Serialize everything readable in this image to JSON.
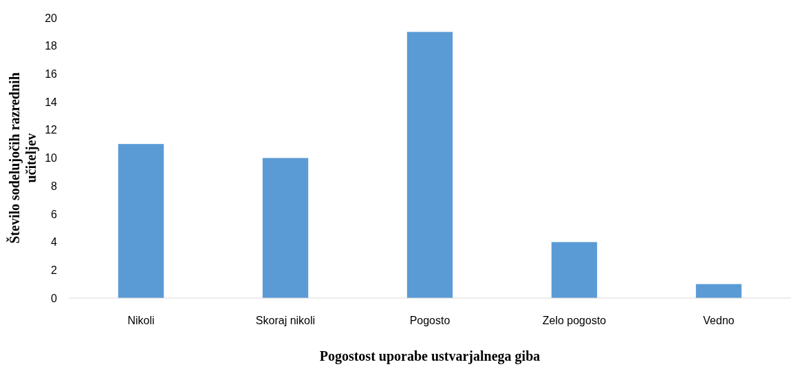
{
  "chart_data": {
    "type": "bar",
    "xlabel": "Pogostost uporabe ustvarjalnega giba",
    "ylabel": "Število sodelujočih razrednih učiteljev",
    "categories": [
      "Nikoli",
      "Skoraj nikoli",
      "Pogosto",
      "Zelo pogosto",
      "Vedno"
    ],
    "values": [
      11,
      10,
      19,
      4,
      1
    ],
    "color": "#5b9bd5",
    "ylim": [
      0,
      20
    ],
    "yticks": [
      0,
      2,
      4,
      6,
      8,
      10,
      12,
      14,
      16,
      18,
      20
    ],
    "grid": false
  }
}
